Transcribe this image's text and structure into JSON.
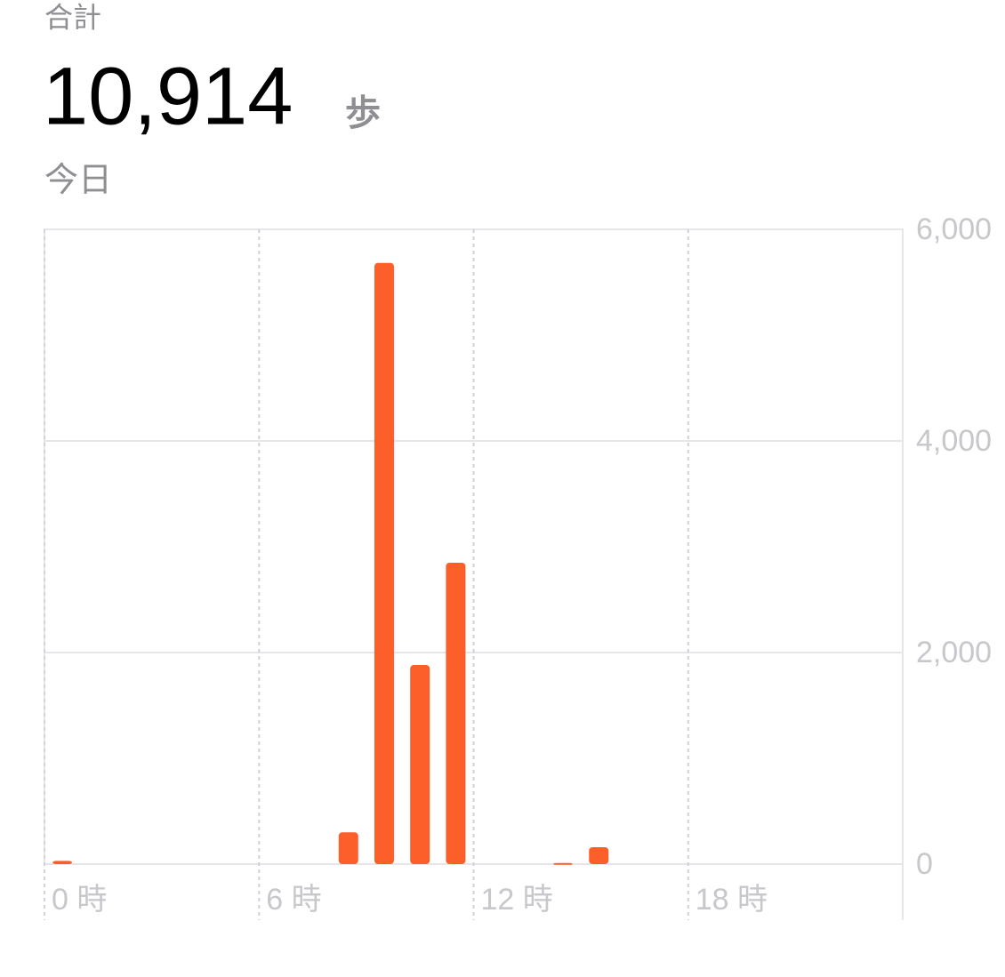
{
  "header": {
    "label": "合計",
    "total": "10,914",
    "unit": "歩",
    "period": "今日"
  },
  "chart_data": {
    "type": "bar",
    "color": "#fd5f2b",
    "grid": true,
    "categories": [
      "0 時",
      null,
      null,
      null,
      null,
      null,
      "6 時",
      null,
      null,
      null,
      null,
      null,
      "12 時",
      null,
      null,
      null,
      null,
      null,
      "18 時",
      null,
      null,
      null,
      null,
      null
    ],
    "values": [
      30,
      null,
      null,
      null,
      null,
      null,
      null,
      null,
      300,
      5683,
      1882,
      2849,
      null,
      null,
      10,
      160,
      null,
      null,
      null,
      null,
      null,
      null,
      null,
      null
    ],
    "ylim": [
      0,
      6000
    ],
    "yticks": [
      0,
      {
        "value": 2000,
        "label": "2,000"
      },
      {
        "value": 4000,
        "label": "4,000"
      },
      {
        "value": 6000,
        "label": "6,000"
      }
    ]
  }
}
